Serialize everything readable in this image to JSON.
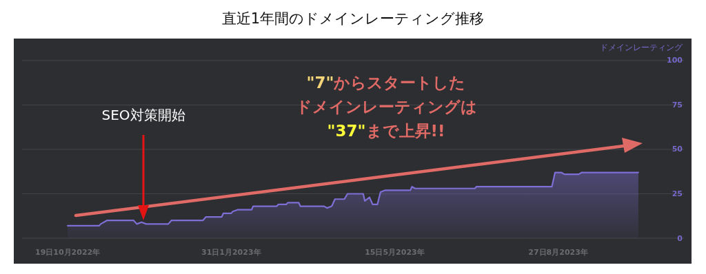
{
  "chart_data": {
    "type": "area",
    "title": "直近1年間のドメインレーティング推移",
    "ylabel": "ドメインレーティング",
    "x": [
      "2022-10-19",
      "2022-11-08",
      "2022-11-09",
      "2022-11-13",
      "2022-11-30",
      "2022-12-02",
      "2022-12-05",
      "2022-12-08",
      "2022-12-22",
      "2022-12-24",
      "2023-01-13",
      "2023-01-15",
      "2023-01-25",
      "2023-01-26",
      "2023-01-31",
      "2023-02-01",
      "2023-02-04",
      "2023-02-13",
      "2023-02-14",
      "2023-03-01",
      "2023-03-02",
      "2023-03-07",
      "2023-03-08",
      "2023-03-15",
      "2023-03-16",
      "2023-03-31",
      "2023-04-02",
      "2023-04-05",
      "2023-04-07",
      "2023-04-13",
      "2023-04-15",
      "2023-04-25",
      "2023-04-26",
      "2023-04-29",
      "2023-05-01",
      "2023-05-04",
      "2023-05-06",
      "2023-05-09",
      "2023-05-25",
      "2023-05-26",
      "2023-05-28",
      "2023-07-05",
      "2023-07-06",
      "2023-08-23",
      "2023-08-25",
      "2023-08-29",
      "2023-08-31",
      "2023-09-09",
      "2023-09-11",
      "2023-10-17"
    ],
    "series": [
      {
        "color": "#7d6fd6",
        "values": [
          7,
          7,
          8,
          10,
          10,
          8,
          9,
          8,
          8,
          10,
          10,
          12,
          12,
          14,
          14,
          15,
          16,
          16,
          18,
          18,
          19,
          19,
          20,
          20,
          18,
          18,
          17,
          18,
          22,
          22,
          25,
          25,
          21,
          23,
          19,
          19,
          26,
          27,
          27,
          29,
          28,
          28,
          29,
          29,
          37,
          37,
          36,
          36,
          37,
          37
        ]
      }
    ],
    "xlim": [
      "2022-09-20",
      "2023-11-15"
    ],
    "xticks": [
      {
        "value": "2022-10-19",
        "label": "19日10月2022年"
      },
      {
        "value": "2023-01-31",
        "label": "31日1月2023年"
      },
      {
        "value": "2023-05-15",
        "label": "15日5月2023年"
      },
      {
        "value": "2023-08-27",
        "label": "27日8月2023年"
      }
    ],
    "ylim": [
      0,
      112
    ],
    "yticks": [
      0,
      25,
      50,
      75,
      100
    ],
    "grid": "y",
    "annotations": [
      "SEO対策開始",
      "\"7\"からスタートした",
      "ドメインレーティングは",
      "\"37\"まで上昇!!"
    ]
  }
}
